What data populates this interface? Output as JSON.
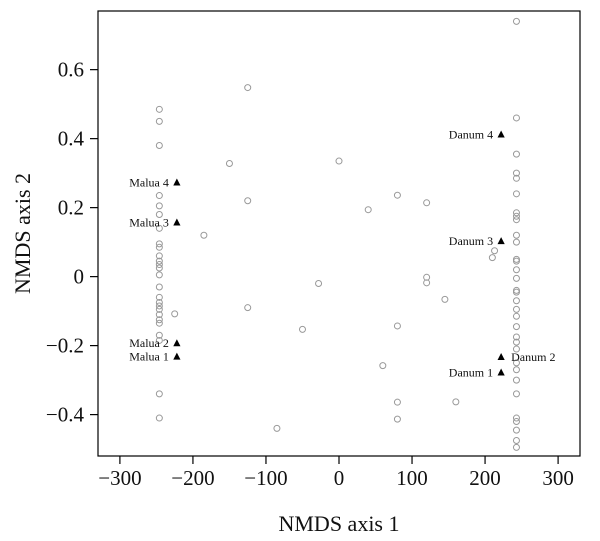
{
  "chart_data": {
    "type": "scatter",
    "xlabel": "NMDS axis 1",
    "ylabel": "NMDS axis 2",
    "xlim": [
      -330,
      330
    ],
    "ylim": [
      -0.52,
      0.77
    ],
    "xticks": [
      -300,
      -200,
      -100,
      0,
      100,
      200,
      300
    ],
    "xtick_labels": [
      "−300",
      "−200",
      "−100",
      "0",
      "100",
      "200",
      "300"
    ],
    "yticks": [
      -0.4,
      -0.2,
      0,
      0.2,
      0.4,
      0.6
    ],
    "ytick_labels": [
      "−0.4",
      "−0.2",
      "0",
      "0.2",
      "0.4",
      "0.6"
    ],
    "grid": false,
    "series": [
      {
        "marker": "open-circle",
        "color": "#999999",
        "points": [
          [
            -246,
            0.485
          ],
          [
            -246,
            0.45
          ],
          [
            -246,
            0.38
          ],
          [
            -246,
            0.235
          ],
          [
            -246,
            0.205
          ],
          [
            -246,
            0.18
          ],
          [
            -246,
            0.14
          ],
          [
            -246,
            0.095
          ],
          [
            -246,
            0.085
          ],
          [
            -246,
            0.06
          ],
          [
            -246,
            0.045
          ],
          [
            -246,
            0.035
          ],
          [
            -246,
            0.025
          ],
          [
            -246,
            0.005
          ],
          [
            -246,
            -0.03
          ],
          [
            -246,
            -0.06
          ],
          [
            -246,
            -0.075
          ],
          [
            -246,
            -0.085
          ],
          [
            -246,
            -0.095
          ],
          [
            -246,
            -0.11
          ],
          [
            -246,
            -0.125
          ],
          [
            -246,
            -0.135
          ],
          [
            -246,
            -0.17
          ],
          [
            -246,
            -0.185
          ],
          [
            -246,
            -0.34
          ],
          [
            -246,
            -0.41
          ],
          [
            -225,
            -0.108
          ],
          [
            -185,
            0.12
          ],
          [
            -150,
            0.328
          ],
          [
            -125,
            0.548
          ],
          [
            -125,
            0.22
          ],
          [
            -125,
            -0.09
          ],
          [
            -85,
            -0.44
          ],
          [
            -50,
            -0.153
          ],
          [
            -28,
            -0.02
          ],
          [
            0,
            0.335
          ],
          [
            40,
            0.194
          ],
          [
            60,
            -0.258
          ],
          [
            80,
            0.236
          ],
          [
            80,
            -0.143
          ],
          [
            80,
            -0.364
          ],
          [
            80,
            -0.413
          ],
          [
            120,
            0.214
          ],
          [
            120,
            -0.002
          ],
          [
            120,
            -0.018
          ],
          [
            145,
            -0.066
          ],
          [
            160,
            -0.363
          ],
          [
            210,
            0.055
          ],
          [
            213,
            0.075
          ],
          [
            243,
            0.74
          ],
          [
            243,
            0.46
          ],
          [
            243,
            0.355
          ],
          [
            243,
            0.3
          ],
          [
            243,
            0.285
          ],
          [
            243,
            0.24
          ],
          [
            243,
            0.185
          ],
          [
            243,
            0.175
          ],
          [
            243,
            0.165
          ],
          [
            243,
            0.12
          ],
          [
            243,
            0.1
          ],
          [
            243,
            0.05
          ],
          [
            243,
            0.045
          ],
          [
            243,
            0.02
          ],
          [
            243,
            -0.005
          ],
          [
            243,
            -0.04
          ],
          [
            243,
            -0.045
          ],
          [
            243,
            -0.07
          ],
          [
            243,
            -0.095
          ],
          [
            243,
            -0.115
          ],
          [
            243,
            -0.145
          ],
          [
            243,
            -0.175
          ],
          [
            243,
            -0.19
          ],
          [
            243,
            -0.21
          ],
          [
            243,
            -0.25
          ],
          [
            243,
            -0.27
          ],
          [
            243,
            -0.3
          ],
          [
            243,
            -0.34
          ],
          [
            243,
            -0.41
          ],
          [
            243,
            -0.42
          ],
          [
            243,
            -0.445
          ],
          [
            243,
            -0.475
          ],
          [
            243,
            -0.495
          ]
        ]
      },
      {
        "marker": "filled-triangle",
        "color": "#000000",
        "points": [
          {
            "x": -222,
            "y": 0.273,
            "label": "Malua 4",
            "anchor": "end"
          },
          {
            "x": -222,
            "y": 0.157,
            "label": "Malua 3",
            "anchor": "end"
          },
          {
            "x": -222,
            "y": -0.193,
            "label": "Malua 2",
            "anchor": "end"
          },
          {
            "x": -222,
            "y": -0.232,
            "label": "Malua 1",
            "anchor": "end"
          },
          {
            "x": 222,
            "y": 0.412,
            "label": "Danum 4",
            "anchor": "end"
          },
          {
            "x": 222,
            "y": 0.103,
            "label": "Danum 3",
            "anchor": "end"
          },
          {
            "x": 222,
            "y": -0.233,
            "label": "Danum 2",
            "anchor": "start"
          },
          {
            "x": 222,
            "y": -0.278,
            "label": "Danum 1",
            "anchor": "end"
          }
        ]
      }
    ]
  }
}
